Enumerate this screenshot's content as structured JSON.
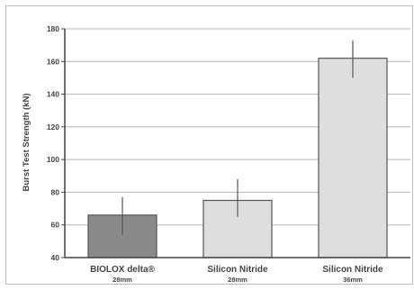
{
  "chart_data": {
    "type": "bar",
    "title": "",
    "xlabel": "",
    "ylabel": "Burst Test Strength (kN)",
    "ylim": [
      40,
      180
    ],
    "yticks": [
      40,
      60,
      80,
      100,
      120,
      140,
      160,
      180
    ],
    "grid": true,
    "categories": [
      {
        "name": "BIOLOX delta®",
        "size": "28mm"
      },
      {
        "name": "Silicon Nitride",
        "size": "28mm"
      },
      {
        "name": "Silicon Nitride",
        "size": "36mm"
      }
    ],
    "values": [
      66,
      75,
      162
    ],
    "error_low": [
      54,
      65,
      150
    ],
    "error_high": [
      77,
      88,
      173
    ],
    "colors": {
      "bar_fills": [
        "#8a8a8a",
        "#dedede",
        "#dedede"
      ],
      "bar_stroke": "#555555",
      "grid": "#b4b4b4",
      "axis": "#444444",
      "error_bar": "#555555",
      "frame": "#bbbbbb"
    }
  }
}
